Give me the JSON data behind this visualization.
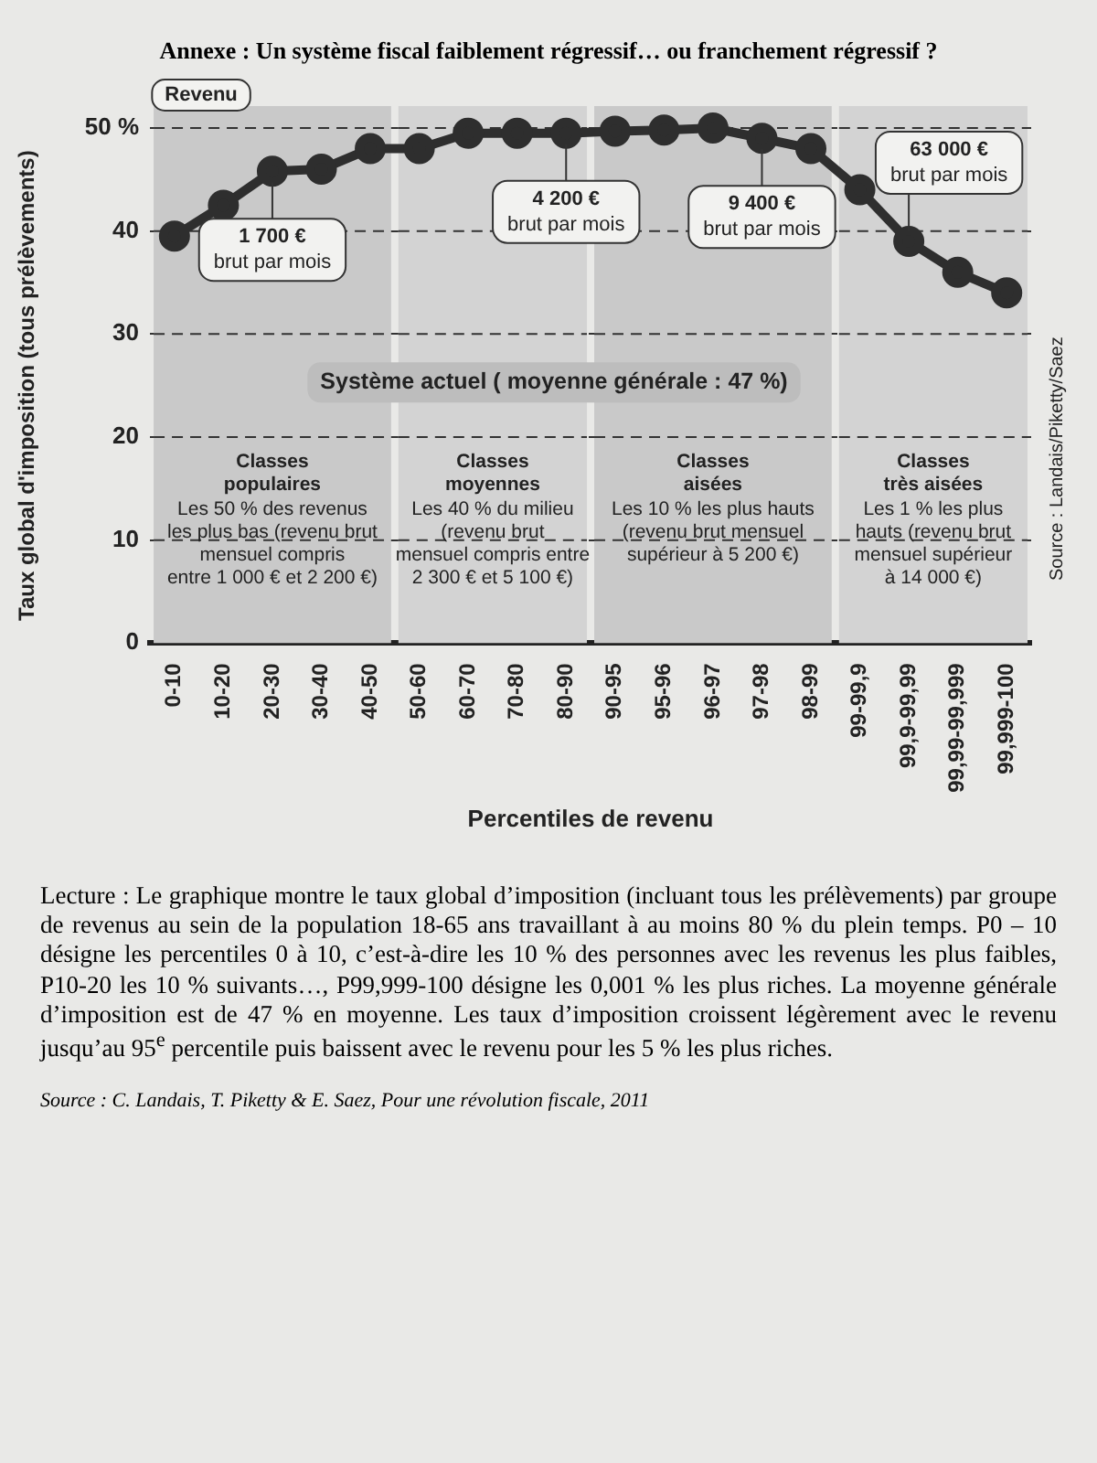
{
  "chart_data": {
    "type": "line",
    "title": "Annexe : Un système fiscal faiblement régressif… ou franchement régressif ?",
    "xlabel": "Percentiles de revenu",
    "ylabel": "Taux global d'imposition (tous prélèvements)",
    "categories": [
      "0-10",
      "10-20",
      "20-30",
      "30-40",
      "40-50",
      "50-60",
      "60-70",
      "70-80",
      "80-90",
      "90-95",
      "95-96",
      "96-97",
      "97-98",
      "98-99",
      "99-99,9",
      "99,9-99,99",
      "99,99-99,999",
      "99,999-100"
    ],
    "series": [
      {
        "color": "#2e2e2e",
        "values": [
          39.5,
          42.5,
          45.8,
          46,
          48,
          48,
          49.5,
          49.5,
          49.5,
          49.7,
          49.8,
          50,
          49,
          48,
          44,
          39,
          36,
          34
        ]
      }
    ],
    "ylim": [
      0,
      50
    ],
    "yticks": [
      0,
      10,
      20,
      30,
      40,
      {
        "value": 50,
        "label": "50 %"
      }
    ],
    "grid": "y",
    "line_style": "solid",
    "marker": "circle",
    "bands": [
      {
        "axis": "x",
        "from": "0-10",
        "to": "40-50",
        "color": "#c9c9c9",
        "label": "Classes\npopulaires\n\nLes 50 % des revenus\nles plus bas (revenu brut\nmensuel compris\nentre 1 000 € et 2 200 €)"
      },
      {
        "axis": "x",
        "from": "50-60",
        "to": "80-90",
        "color": "#d3d3d3",
        "label": "Classes\nmoyennes\n\nLes 40 % du milieu\n(revenu brut\nmensuel compris entre\n2 300 € et 5 100 €)"
      },
      {
        "axis": "x",
        "from": "90-95",
        "to": "98-99",
        "color": "#c9c9c9",
        "label": "Classes\naisées\n\nLes 10 % les plus hauts\n(revenu brut mensuel\nsupérieur à 5 200 €)"
      },
      {
        "axis": "x",
        "from": "99-99,9",
        "to": "99,999-100",
        "color": "#d3d3d3",
        "label": "Classes\ntrès aisées\n\nLes 1 % les plus\nhauts (revenu brut\nmensuel supérieur\nà 14 000 €)"
      }
    ],
    "annotations": [
      "Revenu",
      "Système actuel ( moyenne générale : 47 %)",
      "Source : Landais/Piketty/Saez",
      {
        "text": "1 700 €\nbrut par mois",
        "x": "20-30",
        "y": 45.8
      },
      {
        "text": "4 200 €\nbrut par mois",
        "x": "80-90",
        "y": 49.5
      },
      {
        "text": "9 400 €\nbrut par mois",
        "x": "97-98",
        "y": 49
      },
      {
        "text": "63 000 €\nbrut par mois",
        "x": "99,9-99,99",
        "y": 39
      },
      "Lecture : Le graphique montre le taux global d’imposition (incluant tous les prélèvements) par groupe de revenus au sein de la population 18-65 ans travaillant à au moins 80 % du plein temps. P0 – 10 désigne les percentiles 0 à 10, c’est-à-dire les 10 % des personnes avec les revenus les plus faibles, P10-20 les 10 % suivants…, P99,999-100 désigne les 0,001 % les plus riches. La moyenne générale d’imposition est de 47 % en moyenne. Les taux d’imposition croissent légèrement avec le revenu jusqu’au 95$^{e}$ percentile puis baissent avec le revenu pour les 5 % les plus riches.",
      "Source : C. Landais, T. Piketty & E. Saez, Pour une révolution fiscale, 2011"
    ]
  }
}
